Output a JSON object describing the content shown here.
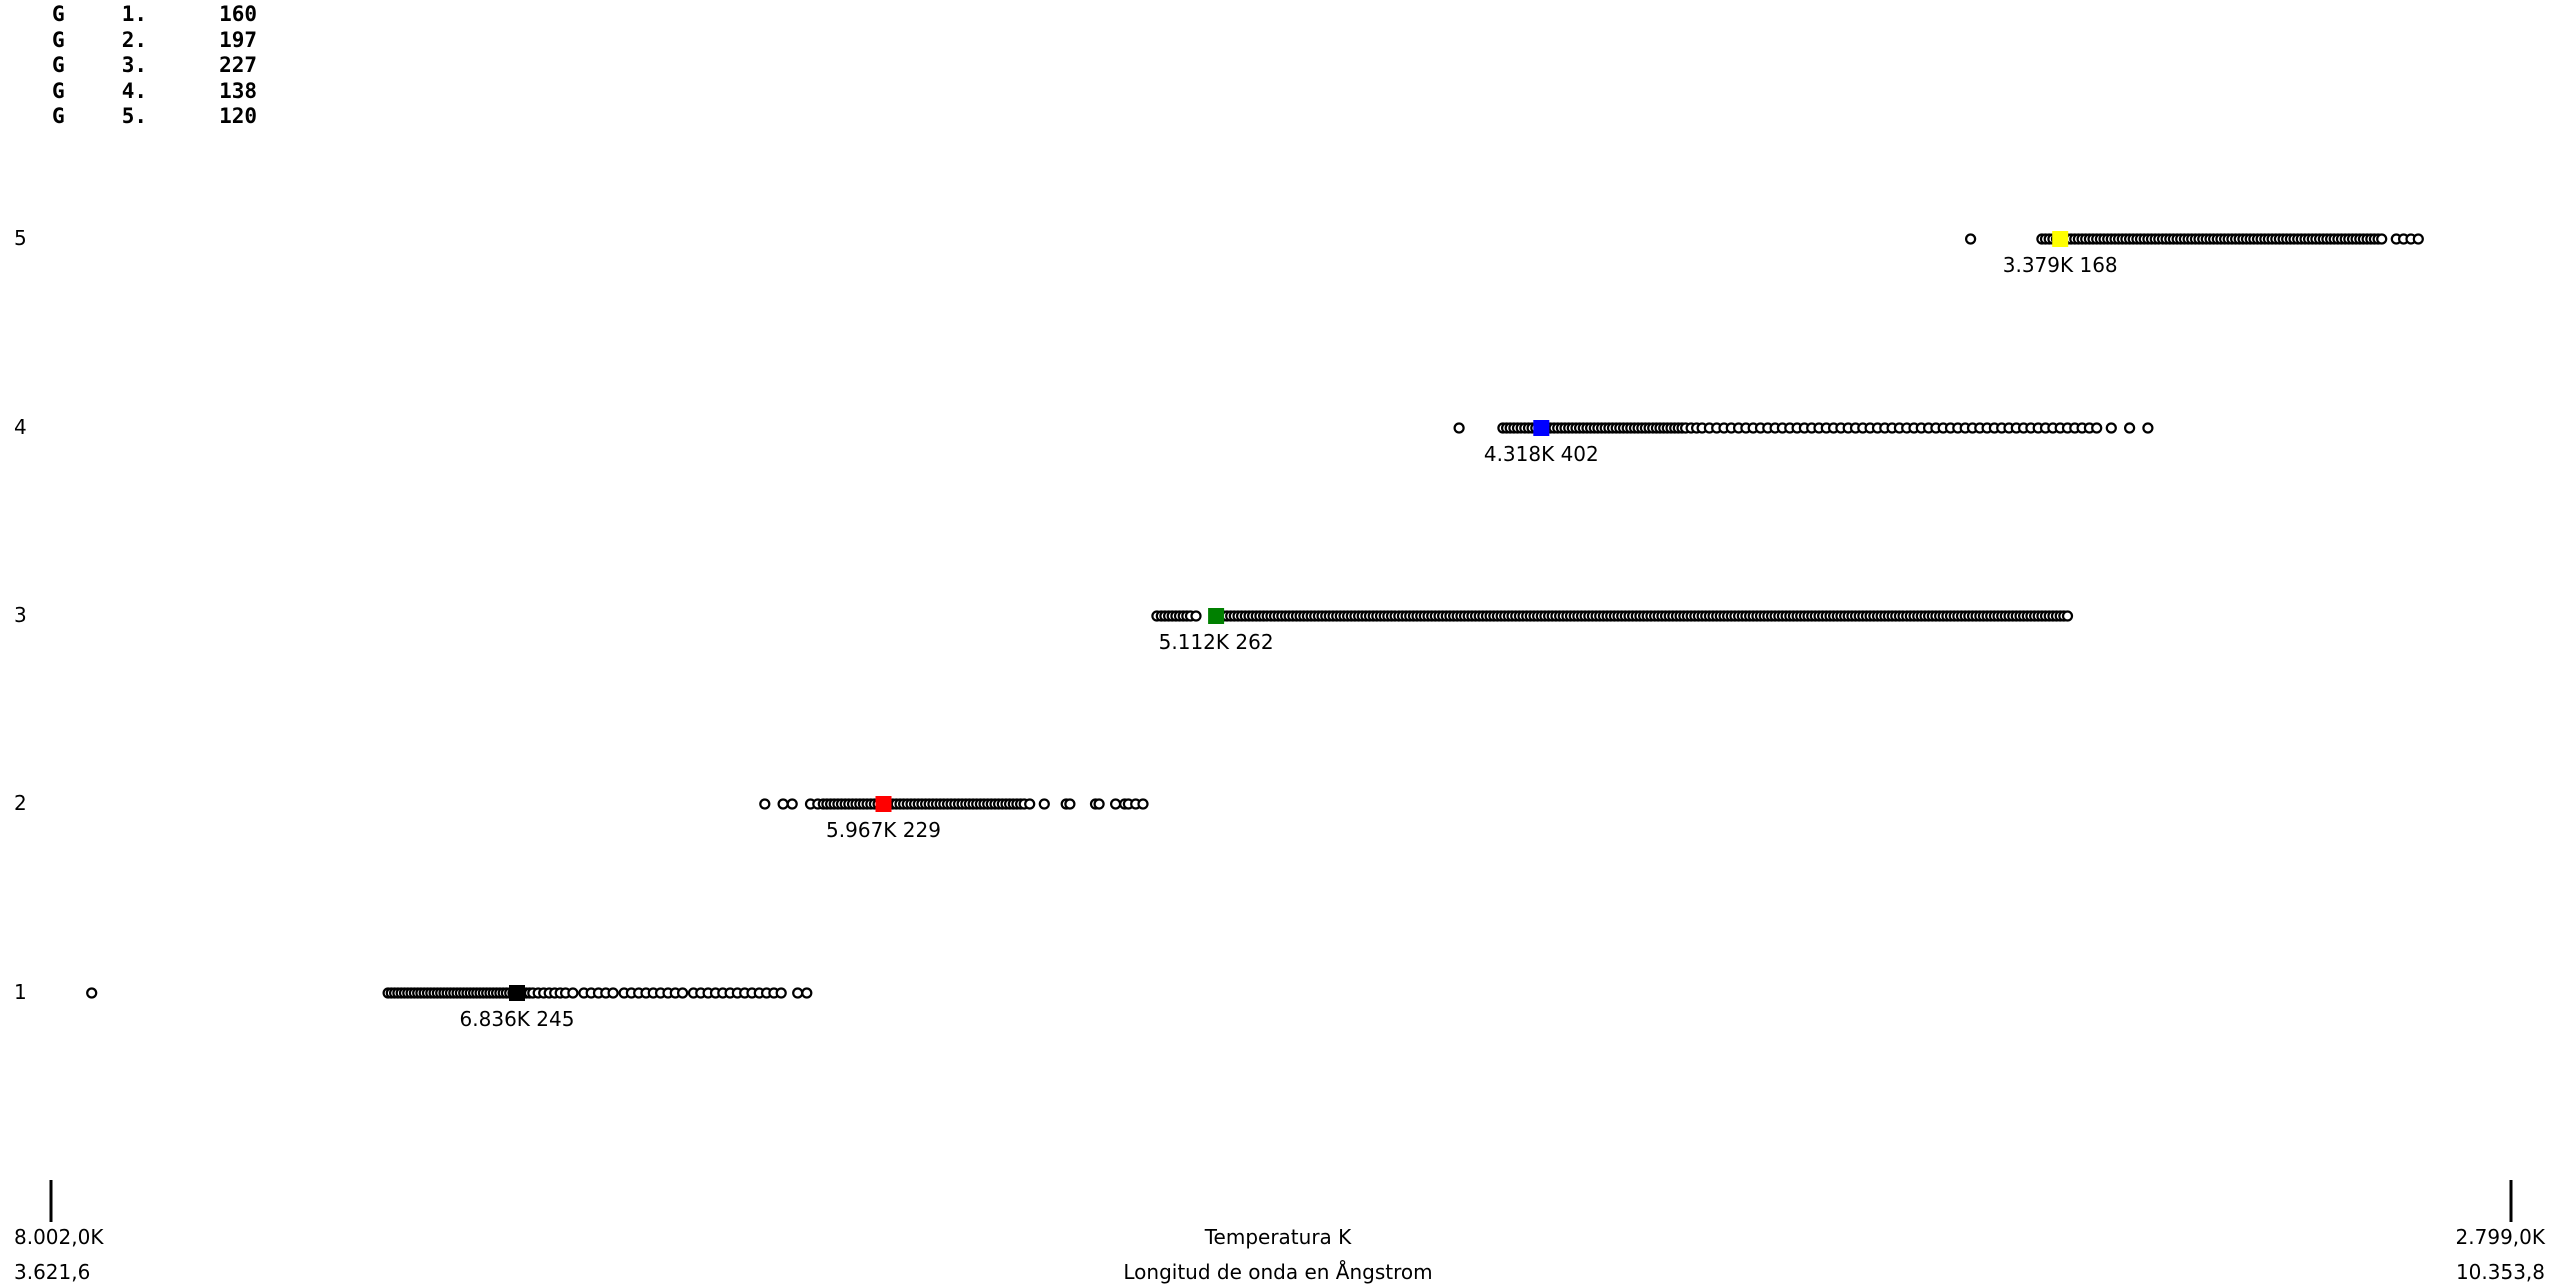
{
  "legend": [
    {
      "g": "G",
      "num": "1.",
      "count": "160"
    },
    {
      "g": "G",
      "num": "2.",
      "count": "197"
    },
    {
      "g": "G",
      "num": "3.",
      "count": "227"
    },
    {
      "g": "G",
      "num": "4.",
      "count": "138"
    },
    {
      "g": "G",
      "num": "5.",
      "count": "120"
    }
  ],
  "chart_data": {
    "type": "scatter",
    "title": "",
    "xlabel": "Temperatura K",
    "xlabel2": "Longitud de onda en Ångstrom",
    "x_left_temp": "8.002,0K",
    "x_right_temp": "2.799,0K",
    "x_left_wavelength": "3.621,6",
    "x_right_wavelength": "10.353,8",
    "xlim_wavelength": [
      3621.6,
      10353.8
    ],
    "y_categories": [
      "1",
      "2",
      "3",
      "4",
      "5"
    ],
    "groups": [
      {
        "y": "1",
        "label": "6.836K 245",
        "color": "#000000",
        "mean": 4897,
        "points": [
          3733,
          4544,
          4553,
          4562,
          4571,
          4580,
          4589,
          4598,
          4607,
          4616,
          4625,
          4634,
          4643,
          4652,
          4661,
          4670,
          4679,
          4688,
          4697,
          4706,
          4715,
          4724,
          4733,
          4742,
          4751,
          4760,
          4769,
          4778,
          4787,
          4796,
          4805,
          4814,
          4823,
          4832,
          4841,
          4850,
          4859,
          4868,
          4877,
          4886,
          4895,
          4904,
          4913,
          4922,
          4931,
          4940,
          4955,
          4970,
          4985,
          5000,
          5015,
          5030,
          5050,
          5080,
          5100,
          5120,
          5140,
          5160,
          5190,
          5210,
          5230,
          5250,
          5270,
          5290,
          5310,
          5330,
          5350,
          5380,
          5400,
          5420,
          5440,
          5460,
          5480,
          5500,
          5520,
          5540,
          5560,
          5580,
          5600,
          5620,
          5665,
          5690
        ]
      },
      {
        "y": "2",
        "label": "5.967K 229",
        "color": "#ff0000",
        "mean": 5900,
        "points": [
          5575,
          5625,
          5650,
          5700,
          5720,
          5735,
          5745,
          5755,
          5765,
          5775,
          5785,
          5795,
          5805,
          5815,
          5825,
          5835,
          5845,
          5855,
          5865,
          5875,
          5885,
          5895,
          5905,
          5915,
          5925,
          5935,
          5945,
          5955,
          5965,
          5975,
          5985,
          5995,
          6005,
          6015,
          6025,
          6035,
          6045,
          6055,
          6065,
          6075,
          6085,
          6095,
          6105,
          6115,
          6125,
          6135,
          6145,
          6155,
          6165,
          6175,
          6185,
          6195,
          6205,
          6215,
          6225,
          6235,
          6245,
          6255,
          6265,
          6275,
          6285,
          6300,
          6340,
          6400,
          6410,
          6480,
          6490,
          6535,
          6560,
          6570,
          6590,
          6610
        ]
      },
      {
        "y": "3",
        "label": "5.112K 262",
        "color": "#008000",
        "mean": 6810,
        "points": [
          6648,
          6660,
          6670,
          6680,
          6690,
          6700,
          6710,
          6720,
          6730,
          6740,
          6755,
          6830,
          6840,
          6850,
          6860,
          6870,
          6880,
          6890,
          6900,
          6910,
          6920,
          6930,
          6940,
          6950,
          6960,
          6970,
          6980,
          6990,
          7000,
          7010,
          7020,
          7030,
          7040,
          7050,
          7060,
          7070,
          7080,
          7090,
          7100,
          7110,
          7120,
          7130,
          7140,
          7150,
          7160,
          7170,
          7180,
          7190,
          7200,
          7210,
          7220,
          7230,
          7240,
          7250,
          7260,
          7270,
          7280,
          7290,
          7300,
          7310,
          7320,
          7330,
          7340,
          7350,
          7360,
          7370,
          7380,
          7390,
          7400,
          7410,
          7420,
          7430,
          7440,
          7450,
          7460,
          7470,
          7480,
          7490,
          7500,
          7510,
          7520,
          7530,
          7540,
          7550,
          7560,
          7570,
          7580,
          7590,
          7600,
          7610,
          7620,
          7630,
          7640,
          7650,
          7660,
          7670,
          7680,
          7690,
          7700,
          7710,
          7720,
          7730,
          7740,
          7750,
          7760,
          7770,
          7780,
          7790,
          7800,
          7810,
          7820,
          7830,
          7840,
          7850,
          7860,
          7870,
          7880,
          7890,
          7900,
          7910,
          7920,
          7930,
          7940,
          7950,
          7960,
          7970,
          7980,
          7990,
          8000,
          8010,
          8020,
          8030,
          8040,
          8050,
          8060,
          8070,
          8080,
          8090,
          8100,
          8110,
          8120,
          8130,
          8140,
          8150,
          8160,
          8170,
          8180,
          8190,
          8200,
          8210,
          8220,
          8230,
          8240,
          8250,
          8260,
          8270,
          8280,
          8290,
          8300,
          8310,
          8320,
          8330,
          8340,
          8350,
          8360,
          8370,
          8380,
          8390,
          8400,
          8410,
          8420,
          8430,
          8440,
          8450,
          8460,
          8470,
          8480,
          8490,
          8500,
          8510,
          8520,
          8530,
          8540,
          8550,
          8560,
          8570,
          8580,
          8590,
          8600,
          8610,
          8620,
          8630,
          8640,
          8650,
          8660,
          8670,
          8680,
          8690,
          8700,
          8710,
          8720,
          8730,
          8740,
          8750,
          8760,
          8770,
          8780,
          8790,
          8800,
          8810,
          8820,
          8830,
          8840,
          8850,
          8860,
          8870,
          8880,
          8890,
          8900,
          8910,
          8920,
          8930,
          8940,
          8950,
          8960,
          8970,
          8980,
          8990,
          9000,
          9010,
          9020,
          9030,
          9040,
          9050,
          9060,
          9070,
          9080,
          9090,
          9100,
          9110,
          9120,
          9130,
          9140
        ]
      },
      {
        "y": "4",
        "label": "4.318K 402",
        "color": "#0000ff",
        "mean": 7700,
        "points": [
          7475,
          7595,
          7605,
          7615,
          7625,
          7635,
          7645,
          7655,
          7665,
          7675,
          7685,
          7695,
          7705,
          7715,
          7725,
          7735,
          7745,
          7755,
          7765,
          7775,
          7785,
          7795,
          7805,
          7815,
          7825,
          7835,
          7845,
          7855,
          7865,
          7875,
          7885,
          7895,
          7905,
          7915,
          7925,
          7935,
          7945,
          7955,
          7965,
          7975,
          7985,
          7995,
          8005,
          8015,
          8025,
          8035,
          8045,
          8055,
          8065,
          8075,
          8085,
          8095,
          8110,
          8125,
          8140,
          8160,
          8180,
          8200,
          8220,
          8240,
          8260,
          8280,
          8300,
          8320,
          8340,
          8360,
          8380,
          8400,
          8420,
          8440,
          8460,
          8480,
          8500,
          8520,
          8540,
          8560,
          8580,
          8600,
          8620,
          8640,
          8660,
          8680,
          8700,
          8720,
          8740,
          8760,
          8780,
          8800,
          8820,
          8840,
          8860,
          8880,
          8900,
          8920,
          8940,
          8960,
          8980,
          9000,
          9020,
          9040,
          9060,
          9080,
          9100,
          9120,
          9140,
          9160,
          9180,
          9200,
          9220,
          9260,
          9310,
          9360
        ]
      },
      {
        "y": "5",
        "label": "3.379K 168",
        "color": "#ffff00",
        "mean": 9120,
        "points": [
          8875,
          9070,
          9080,
          9090,
          9100,
          9110,
          9120,
          9130,
          9140,
          9150,
          9160,
          9170,
          9180,
          9190,
          9200,
          9210,
          9220,
          9230,
          9240,
          9250,
          9260,
          9270,
          9280,
          9290,
          9300,
          9310,
          9320,
          9330,
          9340,
          9350,
          9360,
          9370,
          9380,
          9390,
          9400,
          9410,
          9420,
          9430,
          9440,
          9450,
          9460,
          9470,
          9480,
          9490,
          9500,
          9510,
          9520,
          9530,
          9540,
          9550,
          9560,
          9570,
          9580,
          9590,
          9600,
          9610,
          9620,
          9630,
          9640,
          9650,
          9660,
          9670,
          9680,
          9690,
          9700,
          9710,
          9720,
          9730,
          9740,
          9750,
          9760,
          9770,
          9780,
          9790,
          9800,
          9810,
          9820,
          9830,
          9840,
          9850,
          9860,
          9870,
          9880,
          9890,
          9900,
          9910,
          9920,
          9930,
          9940,
          9950,
          9960,
          9970,
          9980,
          9990,
          10000,
          10040,
          10060,
          10080,
          10100
        ]
      }
    ],
    "grid": false,
    "legend_position": "top-left"
  }
}
